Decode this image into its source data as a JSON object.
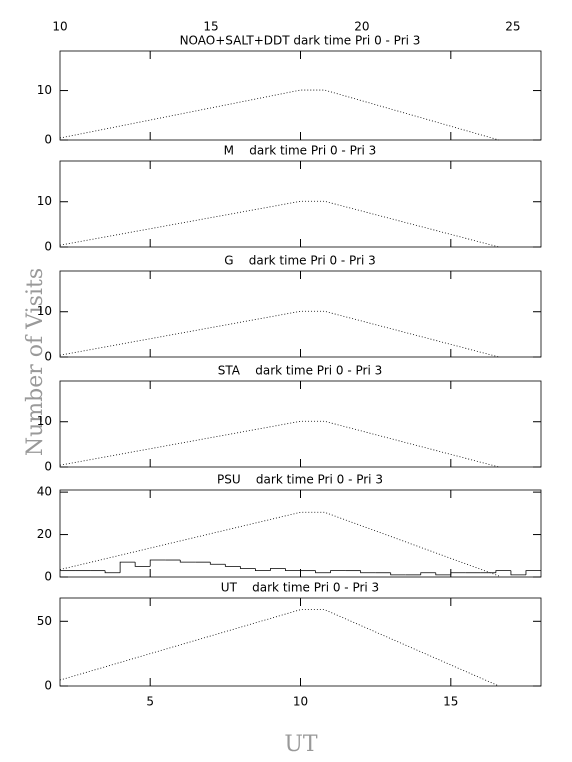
{
  "chart_data": [
    {
      "type": "line",
      "title": "NOAO+SALT+DDT dark time Pri 0 - Pri 3",
      "ylabel": "Number of Visits",
      "xlim": [
        2,
        18
      ],
      "ylim": [
        0,
        18
      ],
      "yticks": [
        0,
        10
      ],
      "x2lim": [
        10,
        25.93
      ],
      "x2ticks": [
        10,
        15,
        20,
        25
      ],
      "series": [
        {
          "color": "#000000",
          "linestyle": "dotted",
          "x": [
            2,
            10,
            10.8,
            16.6
          ],
          "values": [
            0.4,
            10.1,
            10.1,
            0
          ]
        }
      ]
    },
    {
      "type": "line",
      "title": "M    dark time Pri 0 - Pri 3",
      "xlim": [
        2,
        18
      ],
      "ylim": [
        0,
        19
      ],
      "yticks": [
        0,
        10
      ],
      "series": [
        {
          "color": "#000000",
          "linestyle": "dotted",
          "x": [
            2,
            10,
            10.8,
            16.6
          ],
          "values": [
            0.4,
            10.1,
            10.1,
            0
          ]
        }
      ]
    },
    {
      "type": "line",
      "title": "G    dark time Pri 0 - Pri 3",
      "xlim": [
        2,
        18
      ],
      "ylim": [
        0,
        19
      ],
      "yticks": [
        0,
        10
      ],
      "series": [
        {
          "color": "#000000",
          "linestyle": "dotted",
          "x": [
            2,
            10,
            10.8,
            16.6
          ],
          "values": [
            0.4,
            10.1,
            10.1,
            0
          ]
        }
      ]
    },
    {
      "type": "line",
      "title": "STA    dark time Pri 0 - Pri 3",
      "xlim": [
        2,
        18
      ],
      "ylim": [
        0,
        19
      ],
      "yticks": [
        0,
        10
      ],
      "series": [
        {
          "color": "#000000",
          "linestyle": "dotted",
          "x": [
            2,
            10,
            10.8,
            16.6
          ],
          "values": [
            0.4,
            10.1,
            10.1,
            0
          ]
        }
      ]
    },
    {
      "type": "line",
      "title": "PSU    dark time Pri 0 - Pri 3",
      "xlim": [
        2,
        18
      ],
      "ylim": [
        0,
        41
      ],
      "yticks": [
        0,
        20,
        40
      ],
      "series": [
        {
          "color": "#000000",
          "linestyle": "dotted",
          "x": [
            2,
            10,
            10.8,
            16.6
          ],
          "values": [
            3.5,
            30.5,
            30.5,
            0.5
          ]
        }
      ],
      "histogram": {
        "color": "#000000",
        "bins": [
          2,
          2.5,
          3,
          3.5,
          4,
          4.5,
          5,
          5.5,
          6,
          6.5,
          7,
          7.5,
          8,
          8.5,
          9,
          9.5,
          10,
          10.5,
          11,
          11.5,
          12,
          12.5,
          13,
          13.5,
          14,
          14.5,
          15,
          15.5,
          16,
          16.5,
          17,
          17.5,
          18
        ],
        "values": [
          3,
          3,
          3,
          2,
          7,
          5,
          8,
          8,
          7,
          7,
          6,
          5,
          4,
          3,
          4,
          3,
          3,
          2,
          3,
          3,
          2,
          2,
          1,
          1,
          2,
          1,
          2,
          2,
          2,
          3,
          1,
          3
        ]
      }
    },
    {
      "type": "line",
      "title": "UT    dark time Pri 0 - Pri 3",
      "xlabel": "UT",
      "xlim": [
        2,
        18
      ],
      "ylim": [
        0,
        68
      ],
      "yticks": [
        0,
        50
      ],
      "xticks": [
        5,
        10,
        15
      ],
      "series": [
        {
          "color": "#000000",
          "linestyle": "dotted",
          "x": [
            2,
            10,
            10.8,
            16.6
          ],
          "values": [
            4.6,
            59,
            59,
            0
          ]
        }
      ]
    }
  ]
}
